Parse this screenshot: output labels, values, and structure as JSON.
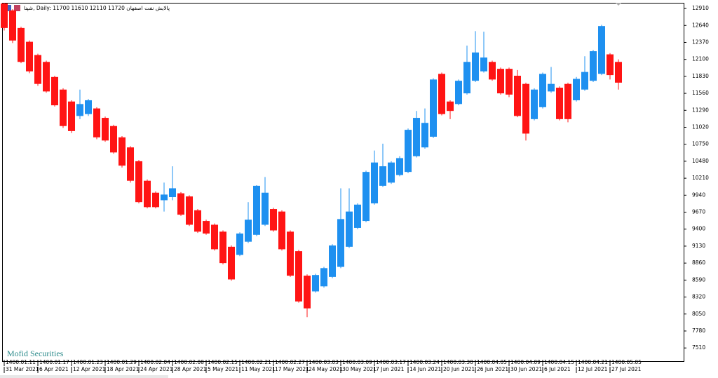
{
  "chart_data": {
    "type": "candlestick",
    "header": {
      "symbol": "شپنا",
      "timeframe": "Daily",
      "quote": [
        11700,
        11610,
        12110,
        11720
      ],
      "instrument_name": "پالایش نفت اصفهان"
    },
    "watermark": "Mofid Securities",
    "up_color": "#1e90f0",
    "down_color": "#ff1414",
    "series": [
      {
        "open": [
          12990,
          12880,
          12600,
          12380,
          12170,
          12060,
          11820,
          11620,
          11430,
          11200,
          11230,
          11320,
          11170,
          11040,
          10860,
          10700,
          10480,
          10170,
          9980,
          9860,
          9910,
          9970,
          9920,
          9700,
          9530,
          9470,
          9360,
          9120,
          8990,
          9200,
          9310,
          9470,
          9720,
          9680,
          9360,
          9050,
          8660,
          8410,
          8490,
          8640,
          8800,
          9120,
          9420,
          9530,
          9810,
          10090,
          10140,
          10260,
          10310,
          10560,
          10700,
          10870,
          11870,
          11430,
          11390,
          11560,
          11760,
          11910,
          12060,
          11950,
          11950,
          11840,
          11710,
          11150,
          11340,
          11590,
          11650,
          11710,
          11450,
          11620,
          11760,
          11870,
          12180,
          12060
        ],
        "high": [
          13000,
          12900,
          12620,
          12400,
          12190,
          12080,
          11840,
          11640,
          11450,
          11620,
          11470,
          11340,
          11190,
          11060,
          10880,
          10720,
          10500,
          10190,
          10000,
          10140,
          10400,
          9990,
          9940,
          9720,
          9550,
          9490,
          9380,
          9140,
          9350,
          9830,
          10100,
          10230,
          9740,
          9700,
          9380,
          9070,
          8680,
          8690,
          8800,
          9160,
          10050,
          10050,
          9810,
          10330,
          10650,
          10760,
          10480,
          10560,
          11000,
          11280,
          11320,
          11800,
          11890,
          11450,
          11780,
          12320,
          12550,
          12540,
          12080,
          11970,
          11970,
          11930,
          11730,
          11640,
          11890,
          11980,
          11670,
          11730,
          11820,
          12150,
          12250,
          12650,
          12200,
          12100
        ],
        "low": [
          12560,
          12360,
          12040,
          11880,
          11680,
          11570,
          11350,
          11010,
          10930,
          11150,
          11200,
          10830,
          10790,
          10600,
          10380,
          10140,
          9810,
          9730,
          9730,
          9680,
          9860,
          9610,
          9450,
          9340,
          9310,
          9060,
          8840,
          8580,
          8970,
          9180,
          9290,
          9450,
          9360,
          9060,
          8640,
          8230,
          8000,
          8390,
          8470,
          8620,
          8780,
          9100,
          9400,
          9510,
          9790,
          10070,
          10120,
          10240,
          10290,
          10540,
          10680,
          10850,
          11210,
          11150,
          11370,
          11540,
          11740,
          11890,
          11760,
          11540,
          11500,
          11180,
          10810,
          11130,
          11320,
          11570,
          11130,
          11100,
          11430,
          11600,
          11740,
          11850,
          11780,
          11620
        ],
        "close": [
          12600,
          12400,
          12060,
          11910,
          11710,
          11590,
          11370,
          11040,
          10960,
          11390,
          11450,
          10860,
          10810,
          10620,
          10410,
          10170,
          9830,
          9750,
          9750,
          9950,
          10050,
          9630,
          9470,
          9360,
          9330,
          9080,
          8860,
          8600,
          9330,
          9550,
          10090,
          9980,
          9380,
          9080,
          8660,
          8250,
          8140,
          8670,
          8780,
          9140,
          9560,
          9680,
          9790,
          10310,
          10460,
          10400,
          10460,
          10530,
          10980,
          11170,
          11090,
          11780,
          11230,
          11280,
          11760,
          12060,
          12210,
          12130,
          11780,
          11560,
          11540,
          11200,
          10920,
          11620,
          11870,
          11710,
          11150,
          11150,
          11790,
          11900,
          12230,
          12630,
          11850,
          11730
        ]
      }
    ],
    "ylim": [
      7300,
      13000
    ],
    "yticks": [
      12910,
      12640,
      12370,
      12100,
      11830,
      11560,
      11290,
      11020,
      10750,
      10480,
      10210,
      9940,
      9670,
      9400,
      9130,
      8860,
      8590,
      8320,
      8050,
      7780,
      7510
    ],
    "xticks": [
      {
        "value": 0,
        "label": "31 Mar 2021"
      },
      {
        "value": 4,
        "label": "6 Apr 2021"
      },
      {
        "value": 8,
        "label": "12 Apr 2021"
      },
      {
        "value": 12,
        "label": "18 Apr 2021"
      },
      {
        "value": 16,
        "label": "24 Apr 2021"
      },
      {
        "value": 20,
        "label": "28 Apr 2021"
      },
      {
        "value": 24,
        "label": "5 May 2021"
      },
      {
        "value": 28,
        "label": "11 May 2021"
      },
      {
        "value": 32,
        "label": "17 May 2021"
      },
      {
        "value": 36,
        "label": "24 May 2021"
      },
      {
        "value": 40,
        "label": "30 May 2021"
      },
      {
        "value": 44,
        "label": "7 Jun 2021"
      },
      {
        "value": 48,
        "label": "14 Jun 2021"
      },
      {
        "value": 52,
        "label": "20 Jun 2021"
      },
      {
        "value": 56,
        "label": "26 Jun 2021"
      },
      {
        "value": 60,
        "label": "30 Jun 2021"
      },
      {
        "value": 64,
        "label": "6 Jul 2021"
      },
      {
        "value": 68,
        "label": "12 Jul 2021"
      },
      {
        "value": 72,
        "label": "27 Jul 2021"
      }
    ],
    "xticks2": [
      {
        "value": 0,
        "label": "1400.01.11"
      },
      {
        "value": 4,
        "label": "1400.01.17"
      },
      {
        "value": 8,
        "label": "1400.01.23"
      },
      {
        "value": 12,
        "label": "1400.01.29"
      },
      {
        "value": 16,
        "label": "1400.02.04"
      },
      {
        "value": 20,
        "label": "1400.02.08"
      },
      {
        "value": 24,
        "label": "1400.02.15"
      },
      {
        "value": 28,
        "label": "1400.02.21"
      },
      {
        "value": 32,
        "label": "1400.02.27"
      },
      {
        "value": 36,
        "label": "1400.03.03"
      },
      {
        "value": 40,
        "label": "1400.03.09"
      },
      {
        "value": 44,
        "label": "1400.03.17"
      },
      {
        "value": 48,
        "label": "1400.03.24"
      },
      {
        "value": 52,
        "label": "1400.03.30"
      },
      {
        "value": 56,
        "label": "1400.04.05"
      },
      {
        "value": 60,
        "label": "1400.04.09"
      },
      {
        "value": 64,
        "label": "1400.04.15"
      },
      {
        "value": 68,
        "label": "1400.04.21"
      },
      {
        "value": 72,
        "label": "1400.05.05"
      }
    ]
  }
}
